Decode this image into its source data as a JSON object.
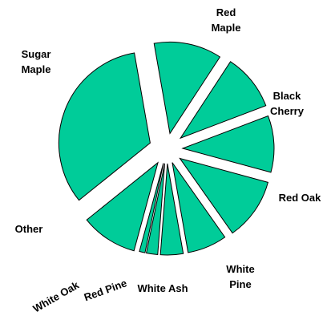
{
  "chart_data": {
    "type": "pie",
    "exploded": true,
    "fill_color": "#00CC99",
    "outline_color": "#000000",
    "values": [
      12,
      10,
      12,
      13,
      8,
      7,
      3,
      2,
      10,
      23
    ],
    "slices": [
      {
        "label_lines": [
          "Red",
          "Maple"
        ],
        "value": 12
      },
      {
        "label_lines": [
          "Black",
          "Cherry"
        ],
        "value": 10
      },
      {
        "label_lines": [
          "Red Oak"
        ],
        "value": 12
      },
      {
        "label_lines": [
          "White",
          "Pine"
        ],
        "value": 13
      },
      {
        "label_lines": [
          "White Ash"
        ],
        "value": 8
      },
      {
        "label_lines": [
          "Red Pine"
        ],
        "value": 7
      },
      {
        "label_lines": [
          "White Oak"
        ],
        "value": 3
      },
      {
        "label_lines": [
          "Other"
        ],
        "value": 2
      },
      {
        "label_lines": [
          "Sugar",
          "Maple"
        ],
        "value": 10
      },
      {
        "label_lines": [],
        "value": 23
      }
    ],
    "legend": "none"
  }
}
